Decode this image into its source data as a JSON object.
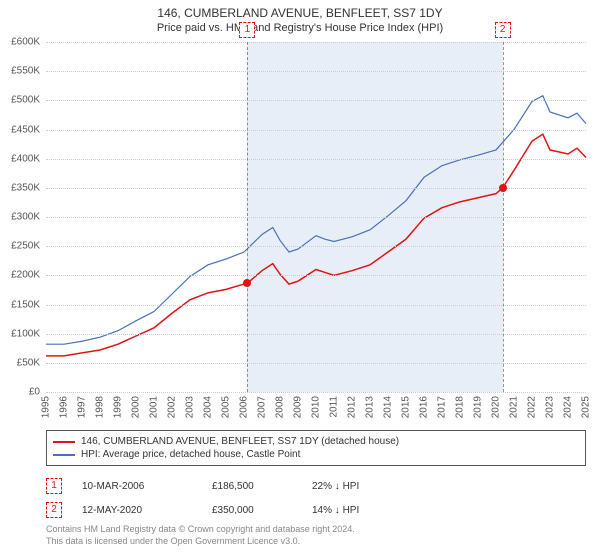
{
  "title": "146, CUMBERLAND AVENUE, BENFLEET, SS7 1DY",
  "subtitle": "Price paid vs. HM Land Registry's House Price Index (HPI)",
  "chart": {
    "type": "line",
    "y_axis": {
      "min": 0,
      "max": 600000,
      "step": 50000,
      "labels": [
        "£0",
        "£50K",
        "£100K",
        "£150K",
        "£200K",
        "£250K",
        "£300K",
        "£350K",
        "£400K",
        "£450K",
        "£500K",
        "£550K",
        "£600K"
      ],
      "fontsize": 10,
      "color": "#555555"
    },
    "x_axis": {
      "min": 1995,
      "max": 2025,
      "step": 1,
      "labels": [
        "1995",
        "1996",
        "1997",
        "1998",
        "1999",
        "2000",
        "2001",
        "2002",
        "2003",
        "2004",
        "2005",
        "2006",
        "2007",
        "2008",
        "2009",
        "2010",
        "2011",
        "2012",
        "2013",
        "2014",
        "2015",
        "2016",
        "2017",
        "2018",
        "2019",
        "2020",
        "2021",
        "2022",
        "2023",
        "2024",
        "2025"
      ],
      "fontsize": 10,
      "color": "#555555"
    },
    "grid_color": "#cccccc",
    "background_color": "#ffffff",
    "shaded_region": {
      "x_start": 2006.19,
      "x_end": 2020.37,
      "fill": "#e8eef7"
    },
    "series": [
      {
        "name": "property",
        "label": "146, CUMBERLAND AVENUE, BENFLEET, SS7 1DY (detached house)",
        "color": "#e01414",
        "width": 1.5,
        "xy": [
          [
            1995,
            62000
          ],
          [
            1996,
            62000
          ],
          [
            1997,
            67000
          ],
          [
            1998,
            72000
          ],
          [
            1999,
            82000
          ],
          [
            2000,
            96000
          ],
          [
            2001,
            110000
          ],
          [
            2002,
            135000
          ],
          [
            2003,
            158000
          ],
          [
            2004,
            170000
          ],
          [
            2005,
            176000
          ],
          [
            2006,
            185000
          ],
          [
            2006.19,
            186500
          ],
          [
            2007,
            208000
          ],
          [
            2007.6,
            220000
          ],
          [
            2008,
            202000
          ],
          [
            2008.5,
            185000
          ],
          [
            2009,
            190000
          ],
          [
            2010,
            210000
          ],
          [
            2010.5,
            205000
          ],
          [
            2011,
            200000
          ],
          [
            2012,
            208000
          ],
          [
            2013,
            218000
          ],
          [
            2014,
            240000
          ],
          [
            2015,
            262000
          ],
          [
            2016,
            298000
          ],
          [
            2017,
            316000
          ],
          [
            2018,
            326000
          ],
          [
            2019,
            333000
          ],
          [
            2020,
            340000
          ],
          [
            2020.37,
            350000
          ],
          [
            2021,
            380000
          ],
          [
            2022,
            430000
          ],
          [
            2022.6,
            442000
          ],
          [
            2023,
            415000
          ],
          [
            2024,
            408000
          ],
          [
            2024.5,
            418000
          ],
          [
            2025,
            402000
          ]
        ]
      },
      {
        "name": "hpi",
        "label": "HPI: Average price, detached house, Castle Point",
        "color": "#4a72b8",
        "width": 1.2,
        "xy": [
          [
            1995,
            82000
          ],
          [
            1996,
            82000
          ],
          [
            1997,
            87000
          ],
          [
            1998,
            94000
          ],
          [
            1999,
            105000
          ],
          [
            2000,
            122000
          ],
          [
            2001,
            138000
          ],
          [
            2002,
            168000
          ],
          [
            2003,
            198000
          ],
          [
            2004,
            218000
          ],
          [
            2005,
            228000
          ],
          [
            2006,
            240000
          ],
          [
            2007,
            270000
          ],
          [
            2007.6,
            282000
          ],
          [
            2008,
            260000
          ],
          [
            2008.5,
            240000
          ],
          [
            2009,
            245000
          ],
          [
            2010,
            268000
          ],
          [
            2010.5,
            262000
          ],
          [
            2011,
            258000
          ],
          [
            2012,
            266000
          ],
          [
            2013,
            278000
          ],
          [
            2014,
            302000
          ],
          [
            2015,
            328000
          ],
          [
            2016,
            368000
          ],
          [
            2017,
            388000
          ],
          [
            2018,
            398000
          ],
          [
            2019,
            406000
          ],
          [
            2020,
            415000
          ],
          [
            2021,
            450000
          ],
          [
            2022,
            498000
          ],
          [
            2022.6,
            508000
          ],
          [
            2023,
            480000
          ],
          [
            2024,
            470000
          ],
          [
            2024.5,
            478000
          ],
          [
            2025,
            460000
          ]
        ]
      }
    ],
    "markers": [
      {
        "x": 2006.19,
        "y": 186500,
        "color": "#e01414",
        "label": "1"
      },
      {
        "x": 2020.37,
        "y": 350000,
        "color": "#e01414",
        "label": "2"
      }
    ]
  },
  "legend": {
    "border_color": "#555555",
    "fontsize": 10,
    "items": [
      {
        "color": "#e01414",
        "label": "146, CUMBERLAND AVENUE, BENFLEET, SS7 1DY (detached house)"
      },
      {
        "color": "#4a72b8",
        "label": "HPI: Average price, detached house, Castle Point"
      }
    ]
  },
  "events": [
    {
      "num": "1",
      "date": "10-MAR-2006",
      "price": "£186,500",
      "diff": "22% ↓ HPI"
    },
    {
      "num": "2",
      "date": "12-MAY-2020",
      "price": "£350,000",
      "diff": "14% ↓ HPI"
    }
  ],
  "attribution": {
    "line1": "Contains HM Land Registry data © Crown copyright and database right 2024.",
    "line2": "This data is licensed under the Open Government Licence v3.0."
  }
}
